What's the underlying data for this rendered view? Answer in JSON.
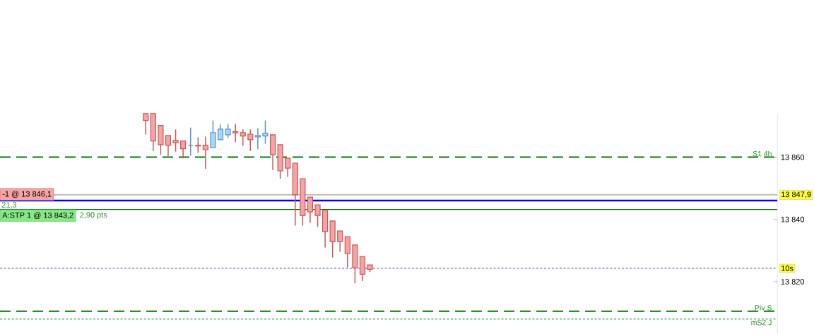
{
  "chart_data": {
    "type": "candlestick",
    "categories": [
      null,
      null,
      null,
      null,
      null,
      null,
      null,
      null,
      null,
      null,
      null,
      null,
      null,
      null,
      null,
      null,
      null,
      null,
      null,
      null,
      null,
      null,
      null,
      null,
      null,
      null,
      null,
      null,
      null,
      null,
      null,
      null,
      null,
      null,
      null,
      null,
      null,
      null,
      null,
      null,
      null,
      null,
      null,
      null,
      null,
      null,
      null,
      null,
      null,
      null,
      null,
      null,
      null,
      null,
      null,
      null,
      null,
      null,
      null,
      null,
      null,
      null,
      null,
      null,
      null,
      null,
      null,
      null,
      null,
      null,
      null,
      null,
      null,
      null,
      null,
      null,
      null,
      null,
      null,
      null,
      null,
      null,
      null,
      null,
      null,
      null,
      null,
      null,
      null,
      null,
      null,
      null,
      null,
      null,
      null,
      null,
      null,
      null,
      null,
      null,
      null,
      null,
      null,
      null
    ],
    "ohlc": [
      null,
      null,
      null,
      null,
      null,
      null,
      null,
      null,
      null,
      null,
      null,
      null,
      null,
      null,
      null,
      null,
      null,
      null,
      null,
      [
        13874,
        13874,
        13867.3,
        13871.8
      ],
      [
        13874,
        13874,
        13862.0,
        13865.2
      ],
      [
        13870.2,
        13870.2,
        13860.8,
        13864.0
      ],
      [
        13867.0,
        13867.0,
        13860.3,
        13863.8
      ],
      [
        13865.4,
        13868.9,
        13861.8,
        13864.7
      ],
      [
        13865.2,
        13865.2,
        13859.6,
        13862.7
      ],
      [
        13863.8,
        13869.5,
        13860.5,
        13863.8
      ],
      [
        13863.8,
        13866.4,
        13861.4,
        13863.6
      ],
      [
        13863.8,
        13866.6,
        13856.2,
        13862.4
      ],
      [
        13863.1,
        13871.8,
        13863.1,
        13867.9
      ],
      [
        13865.6,
        13870.5,
        13865.6,
        13869.0
      ],
      [
        13867.2,
        13870.7,
        13866.2,
        13869.0
      ],
      [
        13868.2,
        13870.7,
        13864.8,
        13867.8
      ],
      [
        13867.9,
        13868.9,
        13863.7,
        13866.8
      ],
      [
        13867.4,
        13868.9,
        13862.0,
        13865.6
      ],
      [
        13866.5,
        13869.3,
        13862.6,
        13867.0
      ],
      [
        13866.8,
        13871.8,
        13864.3,
        13867.7
      ],
      [
        13867.2,
        13867.2,
        13855.8,
        13860.8
      ],
      [
        13864.0,
        13864.0,
        13853.1,
        13855.6
      ],
      [
        13859.7,
        13859.7,
        13853.7,
        13856.5
      ],
      [
        13858.1,
        13858.1,
        13838.0,
        13847.9
      ],
      [
        13853.1,
        13853.1,
        13838.0,
        13841.3
      ],
      [
        13847.2,
        13847.2,
        13838.9,
        13842.4
      ],
      [
        13844.7,
        13844.7,
        13837.6,
        13841.3
      ],
      [
        13842.9,
        13842.9,
        13831.0,
        13836.1
      ],
      [
        13839.5,
        13839.5,
        13827.8,
        13832.9
      ],
      [
        13836.3,
        13836.3,
        13829.6,
        13832.9
      ],
      [
        13834.5,
        13834.5,
        13824.6,
        13829.0
      ],
      [
        13831.8,
        13831.8,
        13819.5,
        13824.5
      ],
      [
        13828.1,
        13828.1,
        13820.2,
        13822.4
      ],
      [
        13825.4,
        13825.4,
        13823.1,
        13824.0
      ],
      null,
      null,
      null,
      null,
      null,
      null,
      null,
      null,
      null,
      null,
      null,
      null,
      null,
      null,
      null,
      null,
      null,
      null,
      null,
      null,
      null,
      null,
      null,
      null,
      null,
      null,
      null,
      null,
      null,
      null,
      null,
      null,
      null,
      null,
      null,
      null,
      null,
      null,
      null,
      null,
      null,
      null,
      null,
      null,
      null,
      null,
      null,
      null,
      null,
      null,
      null,
      null,
      null,
      null
    ],
    "ylim": [
      13803.2,
      13874.2
    ],
    "yticks": [
      {
        "value": 13860,
        "label": "13 860"
      },
      {
        "value": 13840,
        "label": "13 840"
      },
      {
        "value": 13820,
        "label": "13 820"
      }
    ],
    "ref_lines": [
      {
        "axis": "y",
        "value": 13860,
        "label": "S1 4h",
        "color": "#008000",
        "line_style": "dashed"
      },
      {
        "axis": "y",
        "value": 13810.5,
        "label": "Piv S",
        "color": "#008000",
        "line_style": "dashed"
      },
      {
        "axis": "y",
        "value": 13808,
        "label": "mS2 J",
        "color": "#008000",
        "line_style": "dotted"
      },
      {
        "axis": "y",
        "value": 13847.9,
        "label": "13 847,9",
        "color": "#a0a0a0",
        "line_style": "solid"
      },
      {
        "axis": "y",
        "value": 13846.1,
        "color": "#0000ff",
        "line_style": "solid"
      },
      {
        "axis": "y",
        "value": 13843.2,
        "color": "#006400",
        "line_style": "solid"
      },
      {
        "axis": "y",
        "value": 13824.3,
        "label": "10s",
        "color": "#3333ff",
        "line_style": "dotted"
      }
    ],
    "annotations": [
      {
        "text": "-1 @ 13 846,1",
        "y": 13846.1
      },
      {
        "text": "A:STP 1 @ 13 843,2",
        "y": 13843.2
      },
      "21,3",
      "2,90 pts"
    ]
  }
}
